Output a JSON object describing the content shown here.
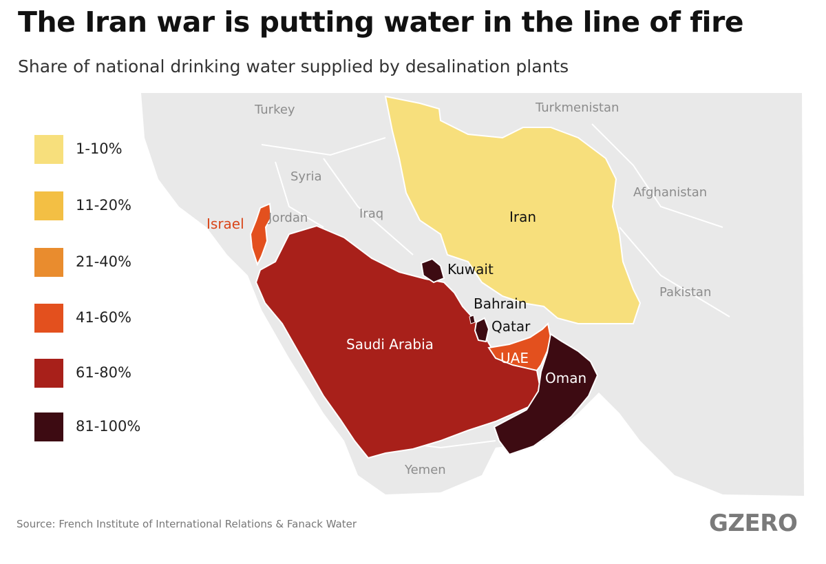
{
  "title": "The Iran war is putting water in the line of fire",
  "subtitle": "Share of national drinking water supplied by desalination plants",
  "legend": [
    {
      "label": "1-10%",
      "color": "#f7df7c"
    },
    {
      "label": "11-20%",
      "color": "#f3bf44"
    },
    {
      "label": "21-40%",
      "color": "#e98c2e"
    },
    {
      "label": "41-60%",
      "color": "#e3501e"
    },
    {
      "label": "61-80%",
      "color": "#a8201a"
    },
    {
      "label": "81-100%",
      "color": "#3d0b12"
    }
  ],
  "countries_highlighted": {
    "iran": {
      "label": "Iran",
      "category": "1-10%"
    },
    "israel": {
      "label": "Israel",
      "category": "41-60%"
    },
    "uae": {
      "label": "UAE",
      "category": "41-60%"
    },
    "saudi_arabia": {
      "label": "Saudi Arabia",
      "category": "61-80%"
    },
    "kuwait": {
      "label": "Kuwait",
      "category": "81-100%"
    },
    "bahrain": {
      "label": "Bahrain",
      "category": "81-100%"
    },
    "qatar": {
      "label": "Qatar",
      "category": "81-100%"
    },
    "oman": {
      "label": "Oman",
      "category": "81-100%"
    }
  },
  "countries_context": {
    "turkey": "Turkey",
    "syria": "Syria",
    "jordan": "Jordan",
    "iraq": "Iraq",
    "turkmenistan": "Turkmenistan",
    "afghanistan": "Afghanistan",
    "pakistan": "Pakistan",
    "yemen": "Yemen"
  },
  "colors": {
    "land_gray": "#e9e9e9",
    "border": "#ffffff"
  },
  "source": "Source: French Institute of International Relations & Fanack Water",
  "brand": "GZERO"
}
